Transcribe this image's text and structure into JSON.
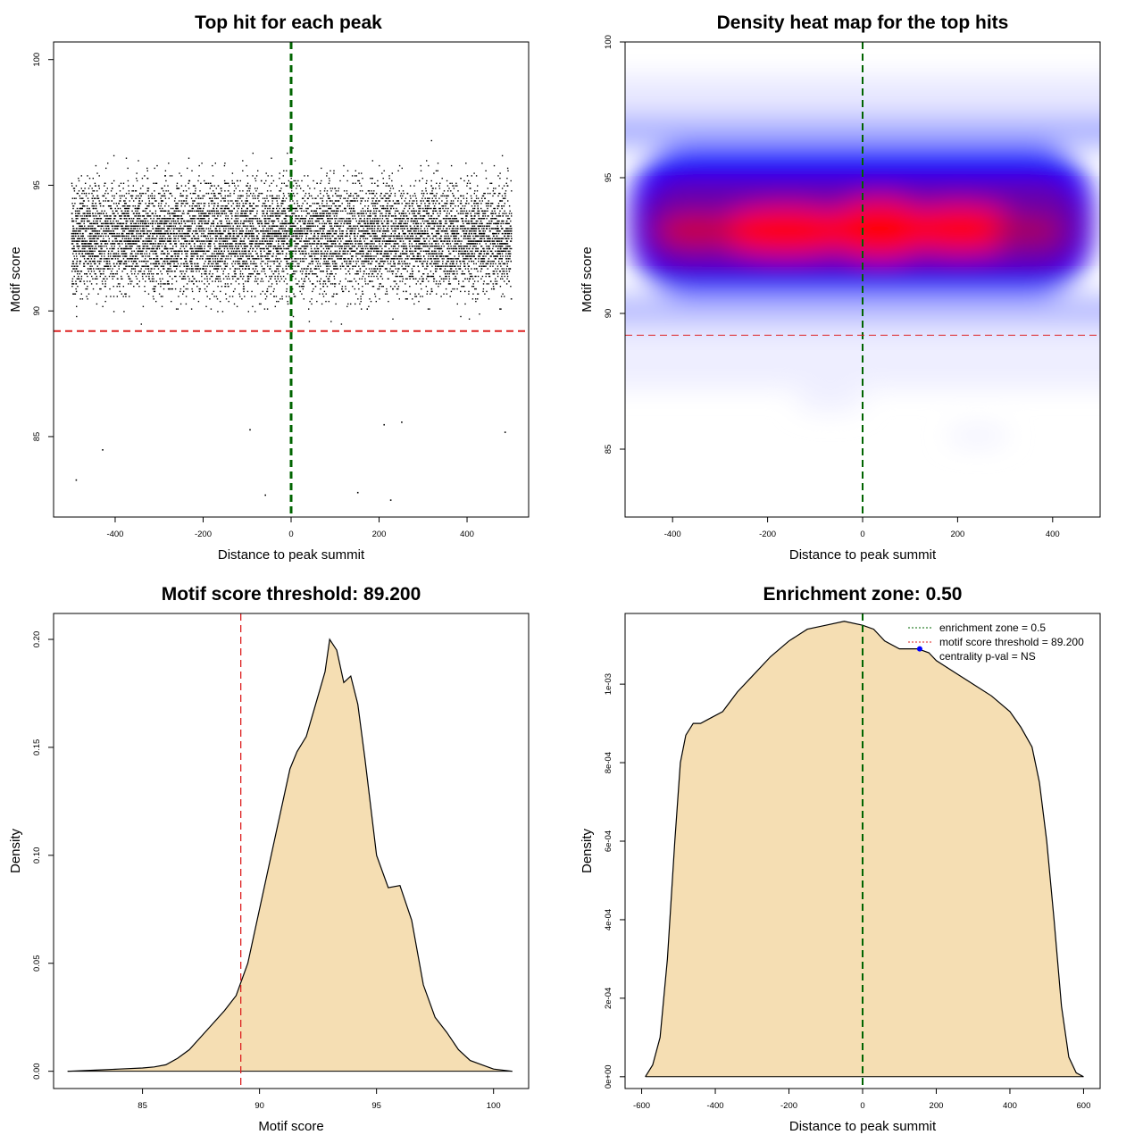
{
  "chart_data": [
    {
      "id": "scatter",
      "type": "scatter",
      "title": "Top hit for each peak",
      "xlabel": "Distance to peak summit",
      "ylabel": "Motif score",
      "xlim": [
        -540,
        540
      ],
      "ylim": [
        81.8,
        100.7
      ],
      "xticks": [
        -400,
        -200,
        0,
        200,
        400
      ],
      "yticks": [
        85,
        90,
        95,
        100
      ],
      "xtick_labels": [
        "-400",
        "-200",
        "0",
        "200",
        "400"
      ],
      "ytick_labels": [
        "85",
        "90",
        "95",
        "100"
      ],
      "points_description": "x uniform in [-500, 500]; y concentrated around 93, range 82.5 to 100",
      "x_range": [
        -500,
        500
      ],
      "score_peak": 93.0,
      "outliers": [
        {
          "x": -490,
          "y": 83.3
        },
        {
          "x": -430,
          "y": 84.5
        },
        {
          "x": -60,
          "y": 82.7
        },
        {
          "x": 150,
          "y": 82.8
        },
        {
          "x": 225,
          "y": 82.5
        },
        {
          "x": -95,
          "y": 85.3
        },
        {
          "x": 485,
          "y": 85.2
        },
        {
          "x": 250,
          "y": 85.6
        },
        {
          "x": 210,
          "y": 85.5
        }
      ],
      "vline": {
        "x": 0,
        "color": "#006400",
        "style": "dashed"
      },
      "hline": {
        "y": 89.2,
        "color": "#dd2222",
        "style": "dashed"
      },
      "grid": false
    },
    {
      "id": "heatmap",
      "type": "heatmap",
      "title": "Density heat map for the top hits",
      "xlabel": "Distance to peak summit",
      "ylabel": "Motif score",
      "xlim": [
        -500,
        500
      ],
      "ylim": [
        82.5,
        100
      ],
      "xticks": [
        -400,
        -200,
        0,
        200,
        400
      ],
      "yticks": [
        85,
        90,
        95,
        100
      ],
      "xtick_labels": [
        "-400",
        "-200",
        "0",
        "200",
        "400"
      ],
      "ytick_labels": [
        "85",
        "90",
        "95",
        "100"
      ],
      "color_scale": [
        "#ffffff",
        "#0000ff",
        "#ff0000"
      ],
      "hotspots": [
        {
          "x": -150,
          "y": 93.0
        },
        {
          "x": 30,
          "y": 93.1
        },
        {
          "x": 170,
          "y": 93.1
        }
      ],
      "vline": {
        "x": 0,
        "color": "#006400",
        "style": "dashed"
      },
      "hline": {
        "y": 89.2,
        "color": "#dd2222",
        "style": "dashed"
      }
    },
    {
      "id": "score-density",
      "type": "area",
      "title": "Motif score threshold: 89.200",
      "xlabel": "Motif score",
      "ylabel": "Density",
      "xlim": [
        81.2,
        101.5
      ],
      "ylim": [
        -0.008,
        0.212
      ],
      "xticks": [
        85,
        90,
        95,
        100
      ],
      "yticks": [
        0.0,
        0.05,
        0.1,
        0.15,
        0.2
      ],
      "xtick_labels": [
        "85",
        "90",
        "95",
        "100"
      ],
      "ytick_labels": [
        "0.00",
        "0.05",
        "0.10",
        "0.15",
        "0.20"
      ],
      "x": [
        81.8,
        83,
        84,
        85,
        85.5,
        86,
        86.5,
        87,
        87.5,
        88,
        88.5,
        89,
        89.5,
        90,
        90.5,
        91,
        91.3,
        91.6,
        92,
        92.4,
        92.8,
        93,
        93.3,
        93.6,
        93.9,
        94.2,
        94.5,
        95,
        95.5,
        96,
        96.5,
        97,
        97.5,
        98,
        98.5,
        99,
        99.5,
        100,
        100.8
      ],
      "y": [
        0.0,
        0.0005,
        0.001,
        0.0015,
        0.002,
        0.003,
        0.006,
        0.01,
        0.016,
        0.022,
        0.028,
        0.035,
        0.05,
        0.075,
        0.1,
        0.125,
        0.14,
        0.148,
        0.155,
        0.17,
        0.185,
        0.2,
        0.195,
        0.18,
        0.183,
        0.17,
        0.145,
        0.1,
        0.085,
        0.086,
        0.07,
        0.04,
        0.025,
        0.018,
        0.01,
        0.005,
        0.003,
        0.001,
        0.0
      ],
      "fill": "#f5deb3",
      "vline": {
        "x": 89.2,
        "color": "#dd2222",
        "style": "dashed"
      }
    },
    {
      "id": "distance-density",
      "type": "area",
      "title": "Enrichment zone: 0.50",
      "xlabel": "Distance to peak summit",
      "ylabel": "Density",
      "xlim": [
        -645,
        645
      ],
      "ylim": [
        -3e-05,
        0.00118
      ],
      "xticks": [
        -600,
        -400,
        -200,
        0,
        200,
        400,
        600
      ],
      "yticks": [
        0.0,
        0.0002,
        0.0004,
        0.0006,
        0.0008,
        0.001
      ],
      "xtick_labels": [
        "-600",
        "-400",
        "-200",
        "0",
        "200",
        "400",
        "600"
      ],
      "ytick_labels": [
        "0e+00",
        "2e-04",
        "4e-04",
        "6e-04",
        "8e-04",
        "1e-03"
      ],
      "x": [
        -590,
        -570,
        -550,
        -530,
        -510,
        -495,
        -480,
        -460,
        -440,
        -420,
        -380,
        -340,
        -300,
        -250,
        -200,
        -150,
        -100,
        -50,
        0,
        30,
        60,
        100,
        150,
        180,
        200,
        250,
        300,
        350,
        400,
        430,
        460,
        480,
        500,
        520,
        540,
        560,
        580,
        600
      ],
      "y": [
        0.0,
        3e-05,
        0.0001,
        0.0003,
        0.0006,
        0.0008,
        0.00087,
        0.0009,
        0.0009,
        0.00091,
        0.00093,
        0.00098,
        0.00102,
        0.00107,
        0.00111,
        0.00114,
        0.00115,
        0.00116,
        0.00115,
        0.00114,
        0.00111,
        0.00109,
        0.00109,
        0.00108,
        0.00106,
        0.00103,
        0.001,
        0.00097,
        0.00093,
        0.00089,
        0.00084,
        0.00075,
        0.0006,
        0.0004,
        0.00018,
        5e-05,
        1e-05,
        0.0
      ],
      "fill": "#f5deb3",
      "vline": {
        "x": 0,
        "color": "#006400",
        "style": "dashed"
      },
      "marker": {
        "x": 155,
        "y": 0.00109,
        "color": "#0000ff"
      },
      "legend": {
        "placement": "top-right",
        "entries": [
          {
            "label": "enrichment zone = 0.5",
            "color": "#006400",
            "style": "dotted"
          },
          {
            "label": "motif score threshold = 89.200",
            "color": "#dd2222",
            "style": "dotted"
          },
          {
            "label": "centrality p-val = NS",
            "color": "",
            "style": "none"
          }
        ]
      }
    }
  ]
}
